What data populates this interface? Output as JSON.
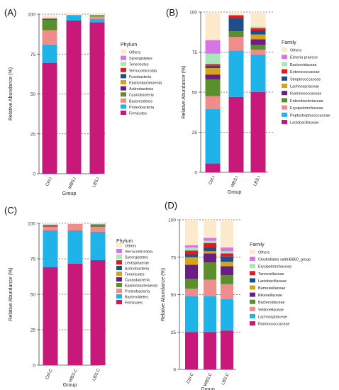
{
  "figure": {
    "panels": [
      {
        "letter": "(A)"
      },
      {
        "letter": "(B)"
      },
      {
        "letter": "(C)"
      },
      {
        "letter": "(D)"
      }
    ]
  },
  "chart_data": [
    {
      "type": "bar",
      "stacked": true,
      "panel": "(A)",
      "xlabel": "Group",
      "ylabel": "Relative Abundance (%)",
      "ylim": [
        0,
        100
      ],
      "yticks": [
        0,
        25,
        50,
        75,
        100
      ],
      "categories": [
        "Ctrl.I",
        "WBS.I",
        "LBS.I"
      ],
      "legend_title": "Phylum",
      "legend_placement": "right",
      "series": [
        {
          "name": "Firmicutes",
          "color": "#c8197a",
          "values": [
            69.5,
            96.0,
            95.0
          ]
        },
        {
          "name": "Proteobacteria",
          "color": "#1fb3ea",
          "values": [
            11.5,
            3.5,
            2.0
          ]
        },
        {
          "name": "Bacteroidetes",
          "color": "#f08c8c",
          "values": [
            9.0,
            0.0,
            1.5
          ]
        },
        {
          "name": "Cyanobacteria",
          "color": "#5b8f2e",
          "values": [
            6.5,
            0.0,
            0.7
          ]
        },
        {
          "name": "Actinobacteria",
          "color": "#6a1e82",
          "values": [
            0.7,
            0.0,
            0.2
          ]
        },
        {
          "name": "Epsilonbacteraeota",
          "color": "#d9a21c",
          "values": [
            0.0,
            0.0,
            0.0
          ]
        },
        {
          "name": "Fusobacteria",
          "color": "#1f4f8a",
          "values": [
            0.0,
            0.0,
            0.0
          ]
        },
        {
          "name": "Verrucomicrobia",
          "color": "#e01b1b",
          "values": [
            0.0,
            0.0,
            0.0
          ]
        },
        {
          "name": "Tenericutes",
          "color": "#a8e8b8",
          "values": [
            0.6,
            0.0,
            0.3
          ]
        },
        {
          "name": "Synergistetes",
          "color": "#d675e8",
          "values": [
            0.0,
            0.0,
            0.0
          ]
        },
        {
          "name": "Others",
          "color": "#fde9cc",
          "values": [
            1.5,
            0.5,
            0.3
          ]
        }
      ]
    },
    {
      "type": "bar",
      "stacked": true,
      "panel": "(B)",
      "xlabel": "Group",
      "ylabel": "Relative Abundance (%)",
      "ylim": [
        0,
        100
      ],
      "yticks": [
        0,
        25,
        50,
        75,
        100
      ],
      "categories": [
        "Ctrl.I",
        "WBS.I",
        "LBS.I"
      ],
      "legend_title": "Family",
      "legend_placement": "right",
      "series": [
        {
          "name": "Lactobacillaceae",
          "color": "#c8197a",
          "values": [
            5.5,
            47.0,
            50.0
          ]
        },
        {
          "name": "Peptostreptococcaceae",
          "color": "#1fb3ea",
          "values": [
            34.0,
            29.0,
            23.5
          ]
        },
        {
          "name": "Erysipelotrichaceae",
          "color": "#f08c8c",
          "values": [
            8.0,
            8.5,
            3.0
          ]
        },
        {
          "name": "Enterobacteriaceae",
          "color": "#5b8f2e",
          "values": [
            10.5,
            3.5,
            3.0
          ]
        },
        {
          "name": "Ruminococcaceae",
          "color": "#6a1e82",
          "values": [
            3.0,
            0.0,
            3.5
          ]
        },
        {
          "name": "Lachnospiraceae",
          "color": "#d9a21c",
          "values": [
            4.0,
            0.0,
            3.0
          ]
        },
        {
          "name": "Streptococcaceae",
          "color": "#1f4f8a",
          "values": [
            1.5,
            8.0,
            2.5
          ]
        },
        {
          "name": "Enterococcaceae",
          "color": "#e01b1b",
          "values": [
            1.0,
            2.0,
            1.5
          ]
        },
        {
          "name": "Bacteroidaceae",
          "color": "#a8e8b8",
          "values": [
            6.5,
            0.0,
            1.0
          ]
        },
        {
          "name": "Eimeria praecox",
          "color": "#d675e8",
          "values": [
            8.5,
            0.0,
            0.0
          ]
        },
        {
          "name": "Others",
          "color": "#fde9cc",
          "values": [
            17.5,
            2.0,
            9.0
          ]
        }
      ]
    },
    {
      "type": "bar",
      "stacked": true,
      "panel": "(C)",
      "xlabel": "Group",
      "ylabel": "Relative Abundance (%)",
      "ylim": [
        0,
        100
      ],
      "yticks": [
        0,
        25,
        50,
        75,
        100
      ],
      "categories": [
        "Ctrl.C",
        "WBS.C",
        "LBS.C"
      ],
      "legend_title": "Phylum",
      "legend_placement": "right",
      "series": [
        {
          "name": "Firmicutes",
          "color": "#c8197a",
          "values": [
            69.0,
            71.5,
            74.0
          ]
        },
        {
          "name": "Bacteroidetes",
          "color": "#1fb3ea",
          "values": [
            26.0,
            23.5,
            20.0
          ]
        },
        {
          "name": "Proteobacteria",
          "color": "#f08c8c",
          "values": [
            2.5,
            4.5,
            3.5
          ]
        },
        {
          "name": "Epsilonbacteraeota",
          "color": "#5b8f2e",
          "values": [
            0.5,
            0.0,
            1.0
          ]
        },
        {
          "name": "Cyanobacteria",
          "color": "#6a1e82",
          "values": [
            0.3,
            0.0,
            0.3
          ]
        },
        {
          "name": "Tenericutes",
          "color": "#d9a21c",
          "values": [
            0.3,
            0.0,
            0.2
          ]
        },
        {
          "name": "Actinobacteria",
          "color": "#1f4f8a",
          "values": [
            0.3,
            0.0,
            0.2
          ]
        },
        {
          "name": "Lentisphaerae",
          "color": "#e01b1b",
          "values": [
            0.1,
            0.0,
            0.1
          ]
        },
        {
          "name": "Synergistetes",
          "color": "#a8e8b8",
          "values": [
            0.2,
            0.0,
            0.2
          ]
        },
        {
          "name": "Verrucomicrobia",
          "color": "#d675e8",
          "values": [
            0.1,
            0.0,
            0.1
          ]
        },
        {
          "name": "Others",
          "color": "#fde9cc",
          "values": [
            0.7,
            0.5,
            0.4
          ]
        }
      ]
    },
    {
      "type": "bar",
      "stacked": true,
      "panel": "(D)",
      "xlabel": "Group",
      "ylabel": "Relative Abundance (%)",
      "ylim": [
        0,
        100
      ],
      "yticks": [
        0,
        25,
        50,
        75,
        100
      ],
      "categories": [
        "Ctrl.C",
        "WBS.C",
        "LBS.C"
      ],
      "legend_title": "Family",
      "legend_placement": "right",
      "series": [
        {
          "name": "Ruminococcaceae",
          "color": "#c8197a",
          "values": [
            25.0,
            25.0,
            26.0
          ]
        },
        {
          "name": "Lachnospiraceae",
          "color": "#1fb3ea",
          "values": [
            24.0,
            24.0,
            21.0
          ]
        },
        {
          "name": "Veillonellaceae",
          "color": "#f08c8c",
          "values": [
            5.0,
            11.0,
            10.0
          ]
        },
        {
          "name": "Bacteroidaceae",
          "color": "#5b8f2e",
          "values": [
            6.5,
            11.5,
            6.0
          ]
        },
        {
          "name": "Rikenellaceae",
          "color": "#6a1e82",
          "values": [
            9.5,
            6.0,
            6.0
          ]
        },
        {
          "name": "Barnesiellaceae",
          "color": "#d9a21c",
          "values": [
            5.0,
            1.5,
            3.0
          ]
        },
        {
          "name": "Lactobacillaceae",
          "color": "#1f4f8a",
          "values": [
            2.0,
            2.5,
            3.5
          ]
        },
        {
          "name": "Tannerellaceae",
          "color": "#e01b1b",
          "values": [
            2.5,
            3.0,
            2.0
          ]
        },
        {
          "name": "Erysipelotrichaceae",
          "color": "#a8e8b8",
          "values": [
            2.0,
            1.5,
            1.5
          ]
        },
        {
          "name": "Clostridiales vadinBB60_group",
          "color": "#d675e8",
          "values": [
            1.5,
            2.0,
            2.5
          ]
        },
        {
          "name": "Others",
          "color": "#fde9cc",
          "values": [
            17.0,
            12.0,
            18.5
          ]
        }
      ]
    }
  ]
}
